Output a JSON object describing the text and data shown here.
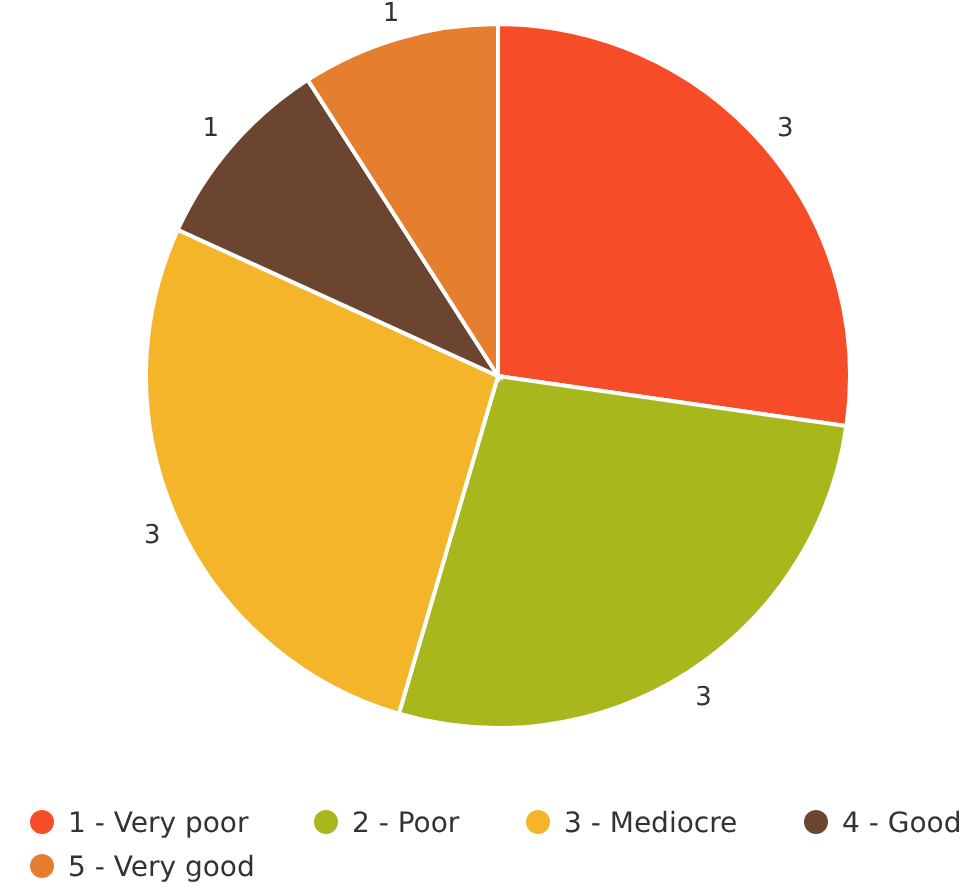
{
  "chart_data": {
    "type": "pie",
    "categories": [
      "1 - Very poor",
      "2 - Poor",
      "3 - Mediocre",
      "4 - Good",
      "5 - Very good"
    ],
    "values": [
      3,
      3,
      3,
      1,
      1
    ],
    "colors": [
      "#f64c27",
      "#a8b71c",
      "#f5b52a",
      "#6b4530",
      "#e67e30"
    ],
    "data_labels": true,
    "legend": "bottom"
  }
}
